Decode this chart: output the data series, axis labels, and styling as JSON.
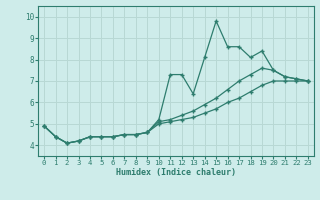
{
  "xlabel": "Humidex (Indice chaleur)",
  "ylabel": "",
  "background_color": "#ceecea",
  "grid_color": "#b8d8d4",
  "line_color": "#2e7d6e",
  "xlim": [
    -0.5,
    23.5
  ],
  "ylim": [
    3.5,
    10.5
  ],
  "xticks": [
    0,
    1,
    2,
    3,
    4,
    5,
    6,
    7,
    8,
    9,
    10,
    11,
    12,
    13,
    14,
    15,
    16,
    17,
    18,
    19,
    20,
    21,
    22,
    23
  ],
  "yticks": [
    4,
    5,
    6,
    7,
    8,
    9,
    10
  ],
  "lines": [
    {
      "x": [
        0,
        1,
        2,
        3,
        4,
        5,
        6,
        7,
        8,
        9,
        10,
        11,
        12,
        13,
        14,
        15,
        16,
        17,
        18,
        19,
        20,
        21,
        22,
        23
      ],
      "y": [
        4.9,
        4.4,
        4.1,
        4.2,
        4.4,
        4.4,
        4.4,
        4.5,
        4.5,
        4.6,
        5.2,
        7.3,
        7.3,
        6.4,
        8.1,
        9.8,
        8.6,
        8.6,
        8.1,
        8.4,
        7.5,
        7.2,
        7.1,
        7.0
      ]
    },
    {
      "x": [
        0,
        1,
        2,
        3,
        4,
        5,
        6,
        7,
        8,
        9,
        10,
        11,
        12,
        13,
        14,
        15,
        16,
        17,
        18,
        19,
        20,
        21,
        22,
        23
      ],
      "y": [
        4.9,
        4.4,
        4.1,
        4.2,
        4.4,
        4.4,
        4.4,
        4.5,
        4.5,
        4.6,
        5.1,
        5.2,
        5.4,
        5.6,
        5.9,
        6.2,
        6.6,
        7.0,
        7.3,
        7.6,
        7.5,
        7.2,
        7.1,
        7.0
      ]
    },
    {
      "x": [
        0,
        1,
        2,
        3,
        4,
        5,
        6,
        7,
        8,
        9,
        10,
        11,
        12,
        13,
        14,
        15,
        16,
        17,
        18,
        19,
        20,
        21,
        22,
        23
      ],
      "y": [
        4.9,
        4.4,
        4.1,
        4.2,
        4.4,
        4.4,
        4.4,
        4.5,
        4.5,
        4.6,
        5.0,
        5.1,
        5.2,
        5.3,
        5.5,
        5.7,
        6.0,
        6.2,
        6.5,
        6.8,
        7.0,
        7.0,
        7.0,
        7.0
      ]
    }
  ]
}
